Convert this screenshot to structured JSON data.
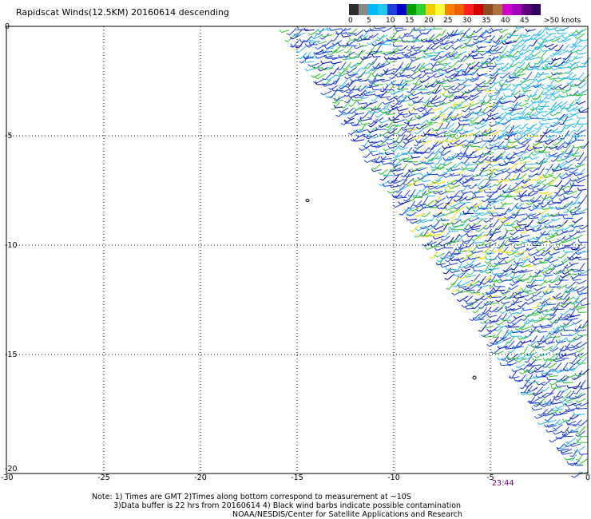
{
  "title": "Rapidscat Winds(12.5KM) 20160614 descending",
  "scale": {
    "labels": [
      "0",
      "5",
      "10",
      "15",
      "20",
      "25",
      "30",
      "35",
      "40",
      "45",
      ">50 knots"
    ],
    "colors": [
      "#2e2e2e",
      "#888888",
      "#00b8ff",
      "#22c8f0",
      "#1e40d8",
      "#0000c8",
      "#00a000",
      "#30d030",
      "#f0d000",
      "#ffff40",
      "#ff8000",
      "#f06000",
      "#ff2020",
      "#d00000",
      "#8a4a24",
      "#b07040",
      "#d000d0",
      "#a000c0",
      "#600080",
      "#300060"
    ]
  },
  "map": {
    "x_ticks": [
      "-30",
      "-25",
      "-20",
      "-15",
      "-10",
      "-5",
      "0"
    ],
    "y_ticks": [
      "0",
      "-5",
      "-10",
      "-15",
      "-20"
    ],
    "time_label": "23:44"
  },
  "notes": {
    "line1": "Note: 1) Times are GMT 2)Times along bottom correspond to measurement at ~10S",
    "line2": "3)Data buffer is 22 hrs from 20160614 4) Black wind barbs indicate possible contamination",
    "line3": "NOAA/NESDIS/Center for Satellite Applications and Research"
  }
}
